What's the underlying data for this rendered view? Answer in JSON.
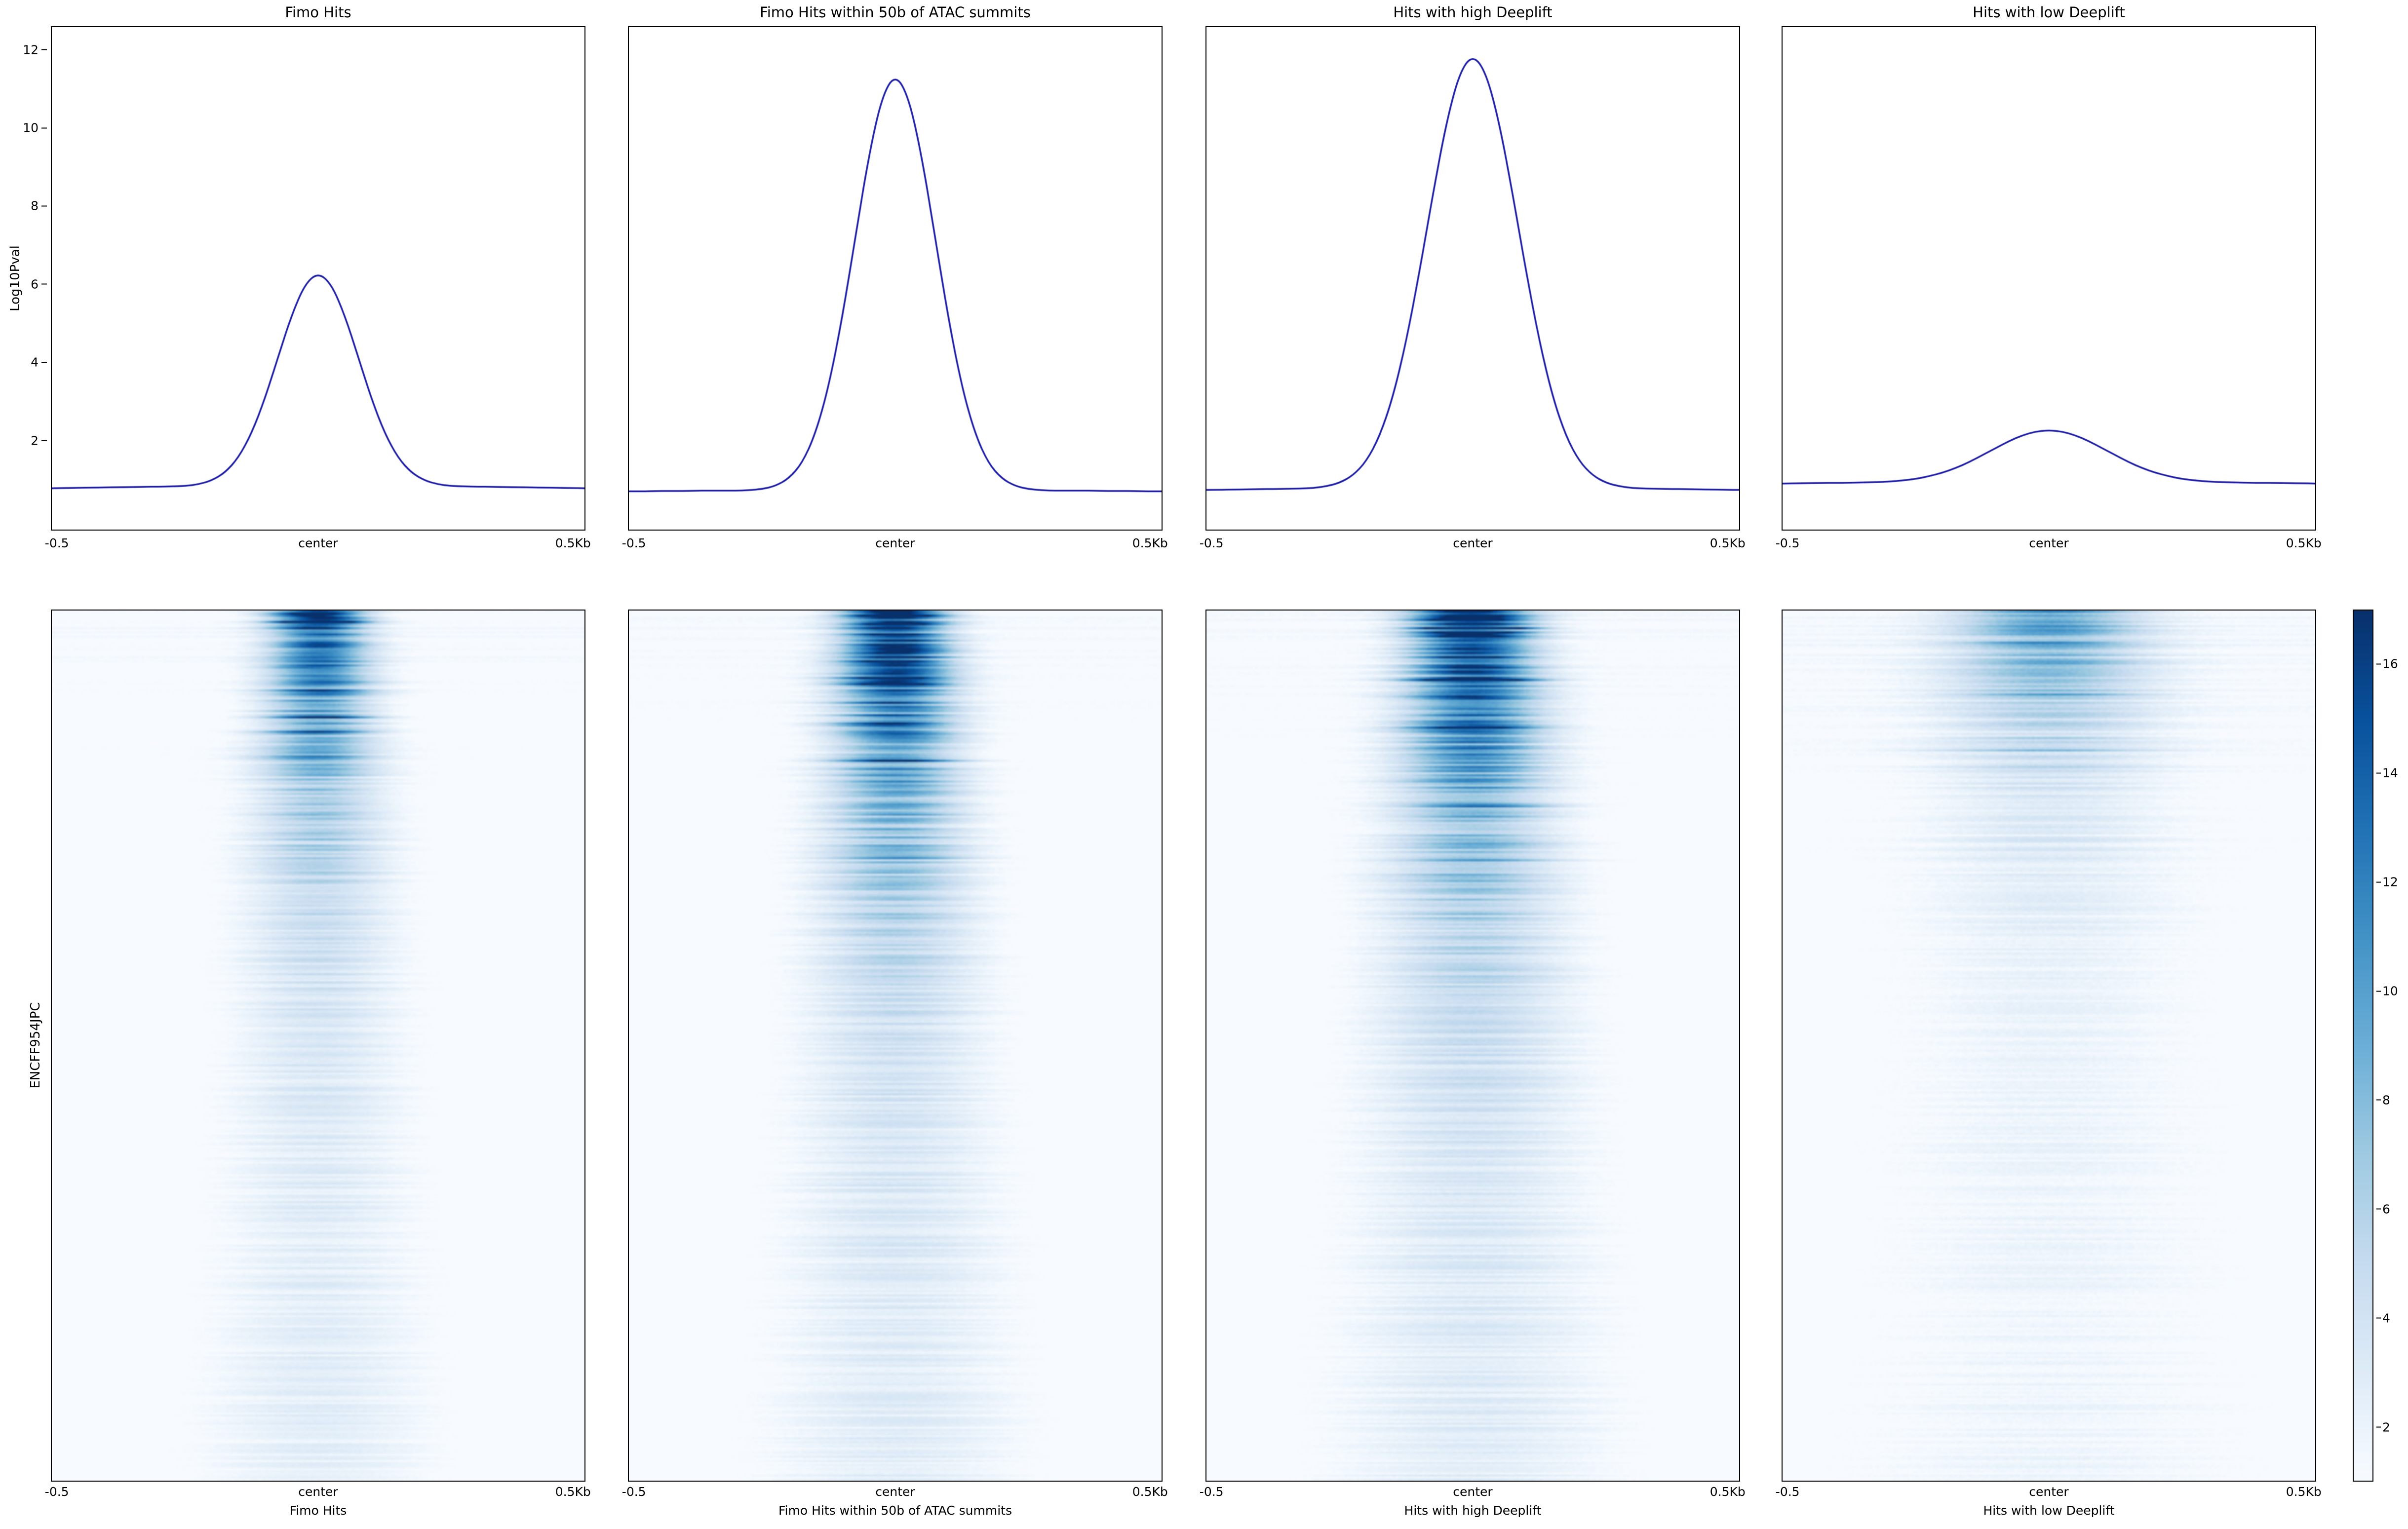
{
  "figure": {
    "profile_ylabel": "Log10Pval",
    "heatmap_ylabel": "ENCFF954JPC",
    "line_color": "#1f1fa6",
    "frame_color": "#000000",
    "background": "#ffffff"
  },
  "chart_data": {
    "type": "heatmap",
    "description": "deepTools plotHeatmap-style figure: top row = average Log10Pval profile line plots, bottom row = per-region signal heatmaps (Blues colormap), shared colorbar at right",
    "x_ticks": [
      "-0.5",
      "center",
      "0.5Kb"
    ],
    "x_range_kb": [
      -0.5,
      0.5
    ],
    "profile": {
      "ylabel": "Log10Pval",
      "ylim": [
        -0.3,
        12.6
      ],
      "yticks": [
        2,
        4,
        6,
        8,
        10,
        12
      ],
      "ytick_labels_top_to_bottom": [
        "12",
        "10",
        "8",
        "6",
        "4",
        "2"
      ],
      "x": [
        -0.5,
        -0.475,
        -0.45,
        -0.425,
        -0.4,
        -0.375,
        -0.35,
        -0.325,
        -0.3,
        -0.275,
        -0.25,
        -0.225,
        -0.2,
        -0.175,
        -0.15,
        -0.125,
        -0.1,
        -0.075,
        -0.05,
        -0.025,
        0,
        0.025,
        0.05,
        0.075,
        0.1,
        0.125,
        0.15,
        0.175,
        0.2,
        0.225,
        0.25,
        0.275,
        0.3,
        0.325,
        0.35,
        0.375,
        0.4,
        0.425,
        0.45,
        0.475,
        0.5
      ]
    },
    "columns": [
      {
        "title": "Fimo Hits",
        "peak_value": 6.3,
        "baseline": 0.8,
        "profile_y": [
          0.76,
          0.77,
          0.77,
          0.78,
          0.78,
          0.79,
          0.79,
          0.8,
          0.8,
          0.81,
          0.82,
          0.86,
          0.96,
          1.16,
          1.54,
          2.17,
          3.06,
          4.14,
          5.2,
          6.0,
          6.3,
          6.0,
          5.2,
          4.14,
          3.06,
          2.17,
          1.54,
          1.16,
          0.96,
          0.86,
          0.82,
          0.81,
          0.8,
          0.8,
          0.79,
          0.79,
          0.78,
          0.78,
          0.77,
          0.77,
          0.76
        ],
        "heatmap": {
          "peak": 14.5,
          "floor": 2.2,
          "tau": 0.2,
          "sigma0": 0.06,
          "spread": 1.9,
          "bg": 0.9,
          "noise": 1.0,
          "seed": 11
        }
      },
      {
        "title": "Fimo Hits within 50b of ATAC summits",
        "peak_value": 11.4,
        "baseline": 0.7,
        "profile_y": [
          0.68,
          0.68,
          0.69,
          0.69,
          0.69,
          0.7,
          0.7,
          0.7,
          0.7,
          0.71,
          0.74,
          0.82,
          1.01,
          1.4,
          2.15,
          3.37,
          5.1,
          7.19,
          9.27,
          10.82,
          11.4,
          10.82,
          9.27,
          7.19,
          5.1,
          3.37,
          2.15,
          1.4,
          1.01,
          0.82,
          0.74,
          0.71,
          0.7,
          0.7,
          0.7,
          0.7,
          0.69,
          0.69,
          0.69,
          0.68,
          0.68
        ],
        "heatmap": {
          "peak": 17.5,
          "floor": 2.4,
          "tau": 0.22,
          "sigma0": 0.065,
          "spread": 1.9,
          "bg": 0.85,
          "noise": 1.1,
          "seed": 22
        }
      },
      {
        "title": "Hits with high Deeplift",
        "peak_value": 11.9,
        "baseline": 0.75,
        "profile_y": [
          0.72,
          0.72,
          0.73,
          0.73,
          0.74,
          0.74,
          0.75,
          0.75,
          0.77,
          0.81,
          0.9,
          1.09,
          1.45,
          2.09,
          3.1,
          4.53,
          6.33,
          8.3,
          10.13,
          11.43,
          11.9,
          11.43,
          10.13,
          8.3,
          6.33,
          4.53,
          3.1,
          2.09,
          1.45,
          1.09,
          0.9,
          0.81,
          0.77,
          0.75,
          0.75,
          0.74,
          0.74,
          0.73,
          0.73,
          0.72,
          0.72
        ],
        "heatmap": {
          "peak": 17.5,
          "floor": 2.4,
          "tau": 0.23,
          "sigma0": 0.075,
          "spread": 1.8,
          "bg": 0.9,
          "noise": 1.2,
          "seed": 33
        }
      },
      {
        "title": "Hits with low Deeplift",
        "peak_value": 2.25,
        "baseline": 0.9,
        "profile_y": [
          0.88,
          0.89,
          0.89,
          0.9,
          0.9,
          0.9,
          0.91,
          0.92,
          0.93,
          0.96,
          1.0,
          1.07,
          1.16,
          1.28,
          1.43,
          1.61,
          1.79,
          1.97,
          2.12,
          2.22,
          2.25,
          2.22,
          2.12,
          1.97,
          1.79,
          1.61,
          1.43,
          1.28,
          1.16,
          1.07,
          1.0,
          0.96,
          0.93,
          0.92,
          0.91,
          0.9,
          0.9,
          0.9,
          0.89,
          0.89,
          0.88
        ],
        "heatmap": {
          "peak": 9.5,
          "floor": 1.6,
          "tau": 0.12,
          "sigma0": 0.12,
          "spread": 1.5,
          "bg": 1.1,
          "noise": 1.4,
          "seed": 44
        }
      }
    ],
    "heatmap_row_label": "ENCFF954JPC",
    "colorbar": {
      "colormap": "Blues",
      "vmin": 1,
      "vmax": 17,
      "ticks": [
        2,
        4,
        6,
        8,
        10,
        12,
        14,
        16
      ],
      "tick_labels_top_to_bottom": [
        "16",
        "14",
        "12",
        "10",
        "8",
        "6",
        "4",
        "2"
      ]
    }
  }
}
